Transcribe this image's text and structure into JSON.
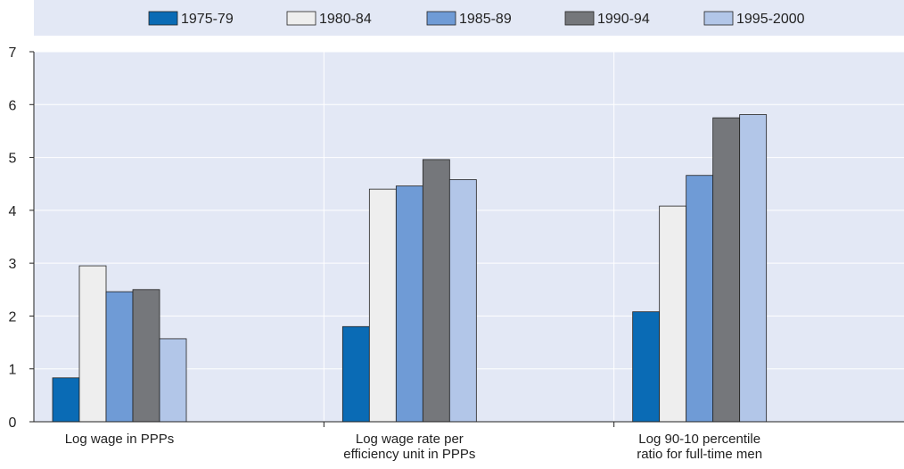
{
  "chart_data": {
    "type": "bar",
    "title": "",
    "xlabel": "",
    "ylabel": "",
    "ylim": [
      0,
      7
    ],
    "yticks": [
      0,
      1,
      2,
      3,
      4,
      5,
      6,
      7
    ],
    "grid": true,
    "legend_position": "top",
    "categories": [
      [
        "Log wage in PPPs"
      ],
      [
        "Log wage rate per",
        "efficiency unit in PPPs"
      ],
      [
        "Log 90-10 percentile",
        "ratio for full-time men"
      ]
    ],
    "series": [
      {
        "name": "1975-79",
        "color": "#0a6bb5",
        "values": [
          0.83,
          1.8,
          2.08
        ]
      },
      {
        "name": "1980-84",
        "color": "#eeeeee",
        "values": [
          2.95,
          4.4,
          4.08
        ]
      },
      {
        "name": "1985-89",
        "color": "#6f9bd6",
        "values": [
          2.46,
          4.46,
          4.66
        ]
      },
      {
        "name": "1990-94",
        "color": "#75777b",
        "values": [
          2.5,
          4.96,
          5.75
        ]
      },
      {
        "name": "1995-2000",
        "color": "#b2c6e8",
        "values": [
          1.57,
          4.58,
          5.81
        ]
      }
    ]
  },
  "colors": {
    "plot_background": "#e3e8f5",
    "legend_background": "#e3e8f5",
    "gridline": "#ffffff",
    "axis": "#222222",
    "bar_outline": "#222222"
  }
}
